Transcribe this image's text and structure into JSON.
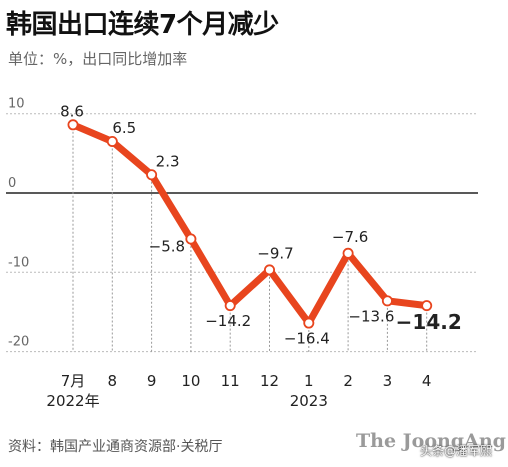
{
  "header": {
    "title": "韩国出口连续7个月减少",
    "subtitle": "单位：%，出口同比增加率"
  },
  "footer": {
    "source": "资料：韩国产业通商资源部·关税厅",
    "brand": "The JoongAng",
    "watermark": "头条@潘军熙"
  },
  "colors": {
    "line": "#e8451e",
    "marker_fill": "#ffffff",
    "grid": "#bbbbbb",
    "zero_line": "#222222",
    "guide": "#999999"
  },
  "chart_data": {
    "type": "line",
    "title": "韩国出口连续7个月减少",
    "subtitle": "单位：%，出口同比增加率",
    "categories": [
      "7月",
      "8",
      "9",
      "10",
      "11",
      "12",
      "1",
      "2",
      "3",
      "4"
    ],
    "year_labels": [
      {
        "index": 0,
        "text": "2022年"
      },
      {
        "index": 6,
        "text": "2023"
      }
    ],
    "series": [
      {
        "values": [
          8.6,
          6.5,
          2.3,
          -5.8,
          -14.2,
          -9.7,
          -16.4,
          -7.6,
          -13.6,
          -14.2
        ],
        "labels": [
          "8.6",
          "6.5",
          "2.3",
          "−5.8",
          "−14.2",
          "−9.7",
          "−16.4",
          "−7.6",
          "−13.6",
          "−14.2"
        ]
      }
    ],
    "yticks": [
      10,
      0,
      -10,
      -20
    ],
    "ylim": [
      -20,
      10
    ],
    "grid": true,
    "legend": "none",
    "highlight_last": true
  }
}
